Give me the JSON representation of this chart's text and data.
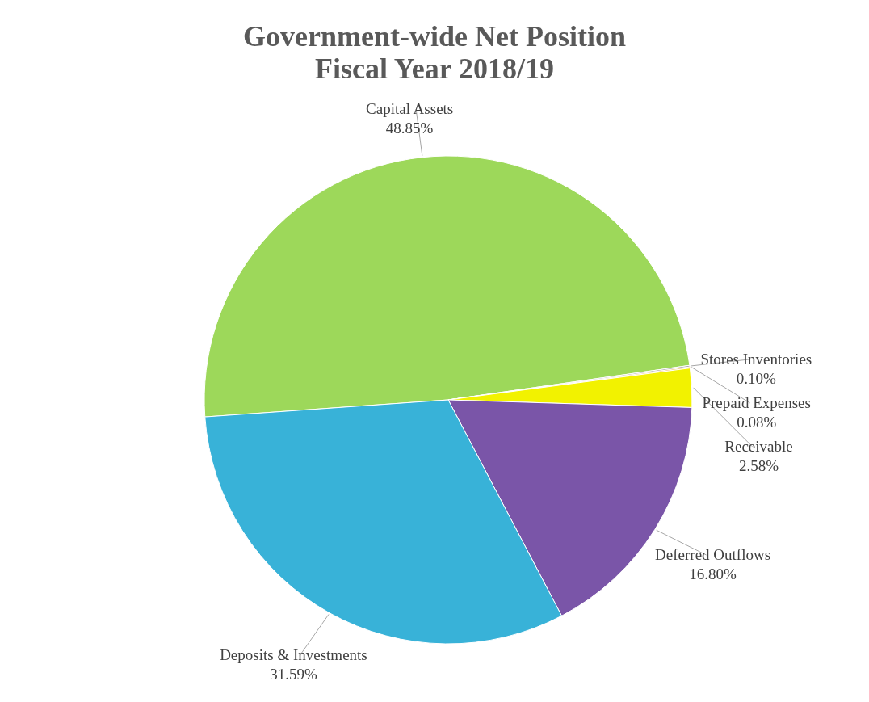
{
  "chart_data": {
    "type": "pie",
    "title": "Government-wide Net Position\nFiscal Year 2018/19",
    "categories": [
      "Capital Assets",
      "Stores Inventories",
      "Prepaid Expenses",
      "Receivable",
      "Deferred Outflows",
      "Deposits & Investments"
    ],
    "values": [
      48.85,
      0.1,
      0.08,
      2.58,
      16.8,
      31.59
    ],
    "colors": [
      "#9dd85a",
      "#a5a5a5",
      "#f0a030",
      "#f2f200",
      "#7a55a8",
      "#38b2d8"
    ],
    "value_labels": [
      "48.85%",
      "0.10%",
      "0.08%",
      "2.58%",
      "16.80%",
      "31.59%"
    ],
    "legend": false
  }
}
